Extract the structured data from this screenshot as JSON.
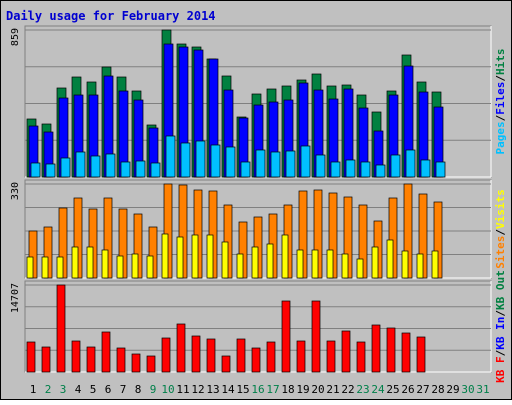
{
  "title": "Daily usage for February 2014",
  "colors": {
    "background": "#C0C0C0",
    "title": "#0000D0",
    "hits": "#008040",
    "files": "#0000FF",
    "pages": "#00C0FF",
    "visits": "#FFFF00",
    "sites": "#FF8000",
    "kbin": "#0000FF",
    "kbout": "#008040",
    "kbf": "#FF0000",
    "weekday_label": "#000000",
    "weekend_label": "#00804A"
  },
  "chart_data": [
    {
      "type": "bar",
      "name": "hits-files-pages",
      "categories": [
        "1",
        "2",
        "3",
        "4",
        "5",
        "6",
        "7",
        "8",
        "9",
        "10",
        "11",
        "12",
        "13",
        "14",
        "15",
        "16",
        "17",
        "18",
        "19",
        "20",
        "21",
        "22",
        "23",
        "24",
        "25",
        "26",
        "27",
        "28",
        "29",
        "30",
        "31"
      ],
      "ylabel": [
        "Pages",
        "Files",
        "Hits"
      ],
      "ymax_label": "859",
      "ylim": [
        0,
        859
      ],
      "series": [
        {
          "name": "Hits",
          "values": [
            340,
            310,
            520,
            585,
            555,
            645,
            585,
            505,
            305,
            860,
            775,
            760,
            690,
            590,
            350,
            485,
            515,
            530,
            565,
            600,
            530,
            535,
            480,
            380,
            500,
            715,
            555,
            495,
            0,
            0,
            0
          ]
        },
        {
          "name": "Files",
          "values": [
            300,
            265,
            460,
            480,
            480,
            590,
            500,
            450,
            285,
            780,
            760,
            745,
            690,
            510,
            345,
            420,
            440,
            450,
            550,
            510,
            455,
            515,
            405,
            270,
            480,
            650,
            495,
            410,
            0,
            0,
            0
          ]
        },
        {
          "name": "Pages",
          "values": [
            80,
            75,
            110,
            145,
            125,
            135,
            90,
            95,
            80,
            240,
            200,
            210,
            185,
            175,
            85,
            155,
            145,
            150,
            180,
            130,
            90,
            100,
            90,
            70,
            130,
            160,
            100,
            90,
            0,
            0,
            0
          ]
        }
      ]
    },
    {
      "type": "bar",
      "name": "visits-sites",
      "categories": [
        "1",
        "2",
        "3",
        "4",
        "5",
        "6",
        "7",
        "8",
        "9",
        "10",
        "11",
        "12",
        "13",
        "14",
        "15",
        "16",
        "17",
        "18",
        "19",
        "20",
        "21",
        "22",
        "23",
        "24",
        "25",
        "26",
        "27",
        "28",
        "29",
        "30",
        "31"
      ],
      "ylabel": [
        "Sites",
        "Visits"
      ],
      "ymax_label": "330",
      "ylim": [
        0,
        330
      ],
      "series": [
        {
          "name": "Sites",
          "values": [
            165,
            178,
            245,
            280,
            243,
            281,
            243,
            225,
            178,
            330,
            328,
            310,
            305,
            255,
            196,
            215,
            225,
            258,
            305,
            310,
            298,
            285,
            258,
            200,
            280,
            330,
            295,
            268,
            0,
            0,
            0
          ]
        },
        {
          "name": "Visits",
          "values": [
            72,
            72,
            75,
            110,
            110,
            100,
            78,
            85,
            78,
            155,
            145,
            150,
            150,
            125,
            85,
            110,
            120,
            150,
            100,
            100,
            100,
            85,
            65,
            110,
            132,
            95,
            85,
            95,
            0,
            0,
            0
          ]
        }
      ]
    },
    {
      "type": "bar",
      "name": "kbf-kbin-kbout",
      "categories": [
        "1",
        "2",
        "3",
        "4",
        "5",
        "6",
        "7",
        "8",
        "9",
        "10",
        "11",
        "12",
        "13",
        "14",
        "15",
        "16",
        "17",
        "18",
        "19",
        "20",
        "21",
        "22",
        "23",
        "24",
        "25",
        "26",
        "27",
        "28",
        "29",
        "30",
        "31"
      ],
      "ylabel": [
        "KB F",
        "KB In",
        "KB Out"
      ],
      "ymax_label": "14707",
      "ylim": [
        0,
        14707
      ],
      "series": [
        {
          "name": "KB F",
          "values": [
            5000,
            4200,
            14707,
            5300,
            4300,
            6800,
            4100,
            3000,
            2700,
            5800,
            8100,
            6100,
            5600,
            2700,
            5600,
            4000,
            5000,
            12000,
            5300,
            12000,
            5300,
            7000,
            5000,
            7900,
            7500,
            6600,
            6000,
            0,
            0,
            0,
            0
          ]
        }
      ]
    }
  ]
}
